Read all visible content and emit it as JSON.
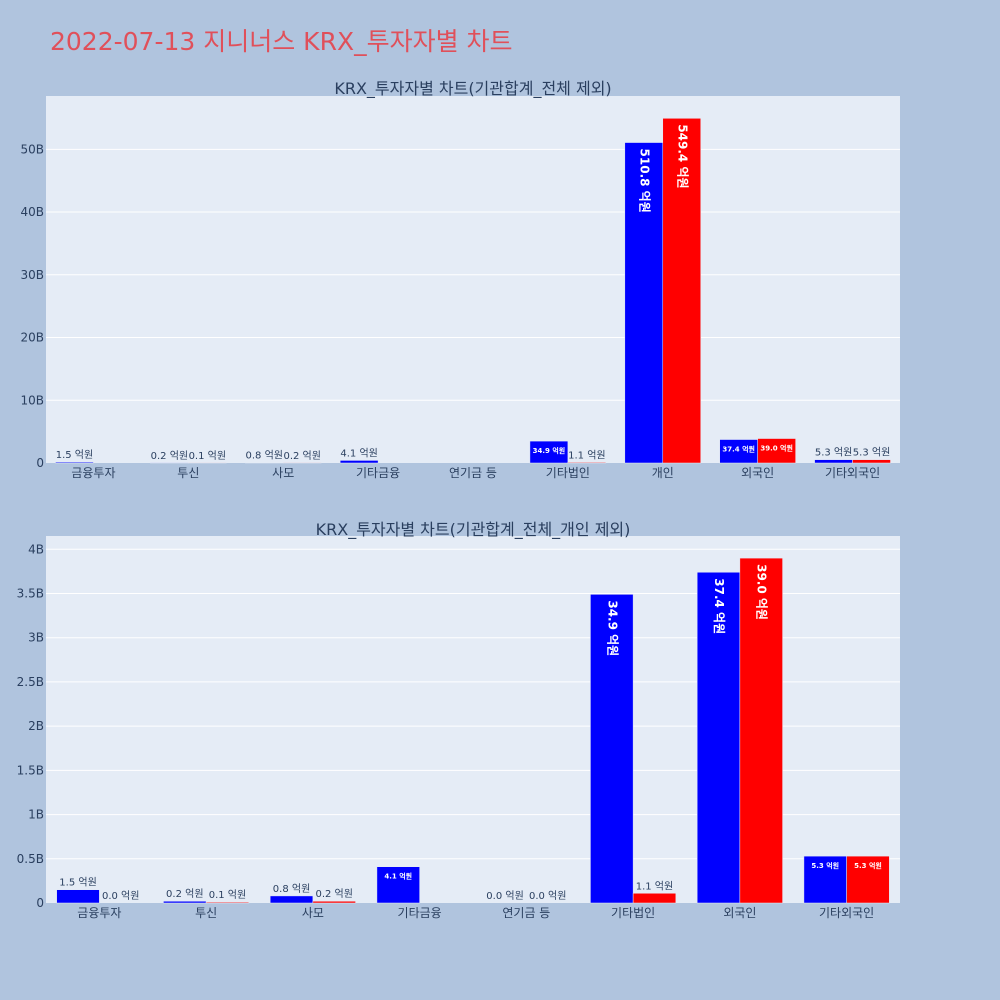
{
  "page_title": "2022-07-13 지니너스 KRX_투자자별 차트",
  "colors": {
    "buy": "#0000ff",
    "sell": "#ff0000",
    "plot_bg": "#e5ecf6",
    "page_bg": "#b0c4de",
    "title": "#e0505a"
  },
  "chart_data": [
    {
      "type": "bar",
      "title": "KRX_투자자별 차트(기관합계_전체 제외)",
      "categories": [
        "금융투자",
        "투신",
        "사모",
        "기타금융",
        "연기금 등",
        "기타법인",
        "개인",
        "외국인",
        "기타외국인"
      ],
      "series": [
        {
          "color": "#0000ff",
          "values": [
            0.15,
            0.02,
            0.08,
            0.41,
            0.0,
            3.49,
            51.08,
            3.74,
            0.53
          ],
          "labels": [
            "1.5 억원",
            "0.2 억원",
            "0.8 억원",
            "4.1 억원",
            "",
            "34.9 억원",
            "510.8 억원",
            "37.4 억원",
            "5.3 억원"
          ]
        },
        {
          "color": "#ff0000",
          "values": [
            0.0,
            0.01,
            0.02,
            0.0,
            0.0,
            0.11,
            54.94,
            3.9,
            0.53
          ],
          "labels": [
            "",
            "0.1 억원",
            "0.2 억원",
            "",
            "",
            "1.1 억원",
            "549.4 억원",
            "39.0 억원",
            "5.3 억원"
          ]
        }
      ],
      "ylim": [
        0,
        58.5
      ],
      "yticks": [
        0,
        10,
        20,
        30,
        40,
        50
      ],
      "ytick_labels": [
        "0",
        "10B",
        "20B",
        "30B",
        "40B",
        "50B"
      ],
      "grid": true,
      "legend": "none"
    },
    {
      "type": "bar",
      "title": "KRX_투자자별 차트(기관합계_전체_개인 제외)",
      "categories": [
        "금융투자",
        "투신",
        "사모",
        "기타금융",
        "연기금 등",
        "기타법인",
        "외국인",
        "기타외국인"
      ],
      "series": [
        {
          "color": "#0000ff",
          "values": [
            0.15,
            0.02,
            0.08,
            0.41,
            0.0,
            3.49,
            3.74,
            0.53
          ],
          "labels": [
            "1.5 억원",
            "0.2 억원",
            "0.8 억원",
            "4.1 억원",
            "0.0 억원",
            "34.9 억원",
            "37.4 억원",
            "5.3 억원"
          ]
        },
        {
          "color": "#ff0000",
          "values": [
            0.0,
            0.01,
            0.02,
            0.0,
            0.0,
            0.11,
            3.9,
            0.53
          ],
          "labels": [
            "0.0 억원",
            "0.1 억원",
            "0.2 억원",
            "",
            "0.0 억원",
            "1.1 억원",
            "39.0 억원",
            "5.3 억원"
          ]
        }
      ],
      "ylim": [
        0,
        4.15
      ],
      "yticks": [
        0,
        0.5,
        1,
        1.5,
        2,
        2.5,
        3,
        3.5,
        4
      ],
      "ytick_labels": [
        "0",
        "0.5B",
        "1B",
        "1.5B",
        "2B",
        "2.5B",
        "3B",
        "3.5B",
        "4B"
      ],
      "grid": true,
      "legend": "none"
    }
  ]
}
